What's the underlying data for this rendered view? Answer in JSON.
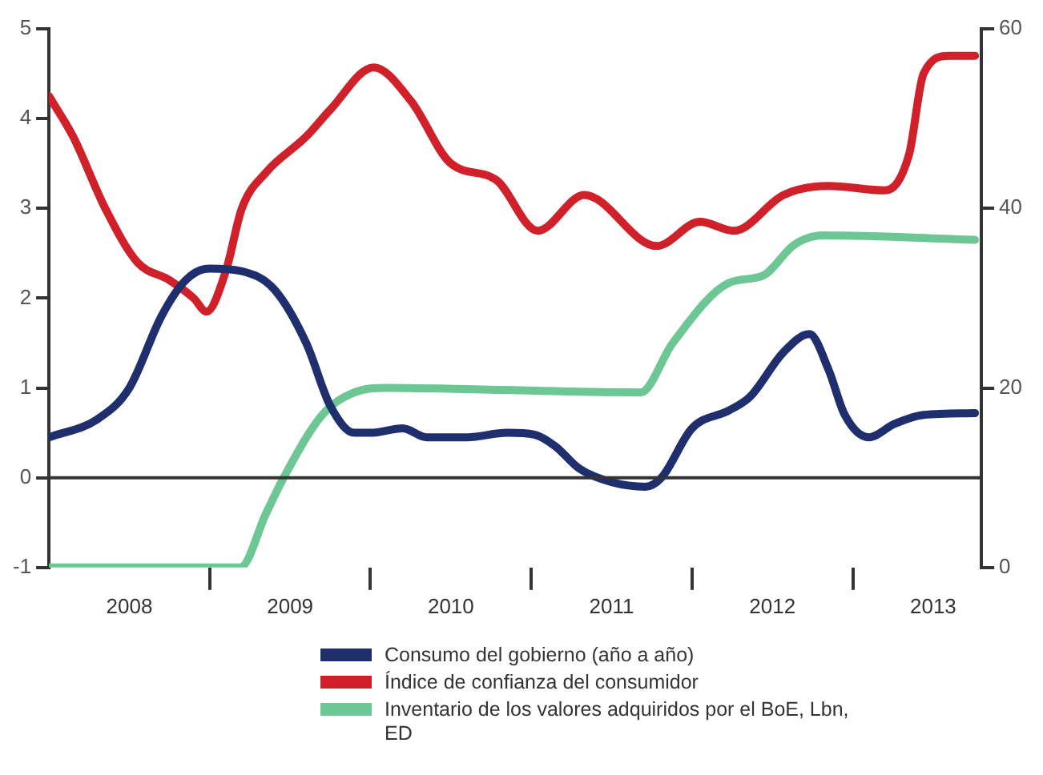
{
  "chart_data": {
    "type": "line",
    "xlim": [
      2008,
      2013.8
    ],
    "xticks": [
      {
        "value": 2008.5,
        "label": "2008"
      },
      {
        "value": 2009,
        "label": null
      },
      {
        "value": 2009.5,
        "label": "2009"
      },
      {
        "value": 2010,
        "label": null
      },
      {
        "value": 2010.5,
        "label": "2010"
      },
      {
        "value": 2011,
        "label": null
      },
      {
        "value": 2011.5,
        "label": "2011"
      },
      {
        "value": 2012,
        "label": null
      },
      {
        "value": 2012.5,
        "label": "2012"
      },
      {
        "value": 2013,
        "label": null
      },
      {
        "value": 2013.5,
        "label": "2013"
      }
    ],
    "ylim": [
      -1,
      5
    ],
    "yticks": [
      -1,
      0,
      1,
      2,
      3,
      4,
      5
    ],
    "y2lim": [
      0,
      60
    ],
    "y2ticks": [
      0,
      20,
      40,
      60
    ],
    "ref_lines": [
      {
        "axis": "y",
        "value": 0
      }
    ],
    "grid": false,
    "legend": "bottom",
    "marker": "none",
    "line_style": "solid",
    "series": [
      {
        "name": "Consumo del gobierno (año a año)",
        "color": "#1f2f6e",
        "x": [
          2008,
          2008.3,
          2008.5,
          2008.7,
          2008.85,
          2009,
          2009.2,
          2009.4,
          2009.6,
          2009.75,
          2009.9,
          2010,
          2010.2,
          2010.35,
          2010.6,
          2010.85,
          2011.02,
          2011.15,
          2011.3,
          2011.5,
          2011.71,
          2011.81,
          2012,
          2012.23,
          2012.36,
          2012.57,
          2012.73,
          2012.85,
          2012.95,
          2013.1,
          2013.26,
          2013.44,
          2013.76
        ],
        "values": [
          0.45,
          0.65,
          1.0,
          1.8,
          2.2,
          2.33,
          2.3,
          2.1,
          1.5,
          0.8,
          0.5,
          0.5,
          0.55,
          0.45,
          0.45,
          0.5,
          0.48,
          0.35,
          0.1,
          -0.05,
          -0.1,
          0.0,
          0.55,
          0.75,
          0.9,
          1.4,
          1.6,
          1.2,
          0.7,
          0.45,
          0.6,
          0.7,
          0.72
        ]
      },
      {
        "name": "Índice de confianza del consumidor",
        "color": "#d0202a",
        "x": [
          2008,
          2008.15,
          2008.35,
          2008.55,
          2008.75,
          2008.9,
          2008.98,
          2009.1,
          2009.2,
          2009.35,
          2009.6,
          2009.75,
          2010.02,
          2010.25,
          2010.5,
          2010.78,
          2011.04,
          2011.33,
          2011.78,
          2012.05,
          2012.26,
          2012.57,
          2012.85,
          2013.2,
          2013.35,
          2013.44,
          2013.6,
          2013.76
        ],
        "values": [
          4.25,
          3.8,
          3.0,
          2.4,
          2.2,
          2.0,
          1.85,
          2.3,
          3.0,
          3.4,
          3.8,
          4.1,
          4.57,
          4.2,
          3.5,
          3.32,
          2.75,
          3.15,
          2.58,
          2.85,
          2.75,
          3.15,
          3.25,
          3.2,
          3.6,
          4.5,
          4.7,
          4.7
        ]
      },
      {
        "name": "Inventario de los valores adquiridos por el BoE, Lbn, ED",
        "color": "#6cc795",
        "axis": "y2",
        "x": [
          2008,
          2009.19,
          2009.35,
          2009.46,
          2009.7,
          2009.9,
          2010.1,
          2011.68,
          2011.88,
          2012.23,
          2012.44,
          2012.64,
          2012.82,
          2013.76
        ],
        "values": [
          0,
          0,
          6,
          10,
          17,
          19.5,
          20,
          19.5,
          25,
          31.7,
          32.5,
          36,
          37,
          36.5
        ]
      }
    ]
  }
}
